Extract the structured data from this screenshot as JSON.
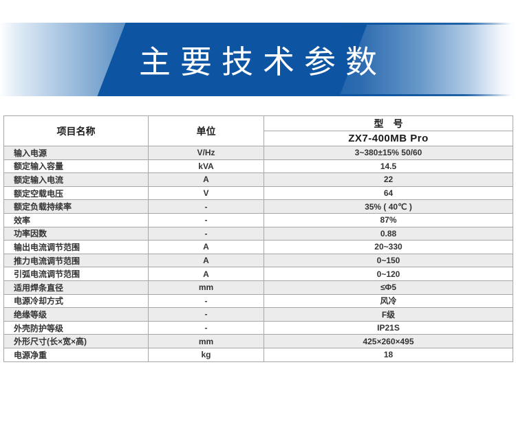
{
  "banner": {
    "title": "主要技术参数",
    "accent_color": "#0d55a2"
  },
  "table": {
    "headers": {
      "item": "项目名称",
      "unit": "单位",
      "model_label": "型　号"
    },
    "model": "ZX7-400MB Pro",
    "rows": [
      {
        "name": "输入电源",
        "unit": "V/Hz",
        "value": "3~380±15% 50/60"
      },
      {
        "name": "额定输入容量",
        "unit": "kVA",
        "value": "14.5"
      },
      {
        "name": "额定输入电流",
        "unit": "A",
        "value": "22"
      },
      {
        "name": "额定空载电压",
        "unit": "V",
        "value": "64"
      },
      {
        "name": "额定负载持续率",
        "unit": "-",
        "value": "35% ( 40℃ )"
      },
      {
        "name": "效率",
        "unit": "-",
        "value": "87%"
      },
      {
        "name": "功率因数",
        "unit": "-",
        "value": "0.88"
      },
      {
        "name": "输出电流调节范围",
        "unit": "A",
        "value": "20~330"
      },
      {
        "name": "推力电流调节范围",
        "unit": "A",
        "value": "0~150"
      },
      {
        "name": "引弧电流调节范围",
        "unit": "A",
        "value": "0~120"
      },
      {
        "name": "适用焊条直径",
        "unit": "mm",
        "value": "≤Φ5"
      },
      {
        "name": "电源冷却方式",
        "unit": "-",
        "value": "风冷"
      },
      {
        "name": "绝缘等级",
        "unit": "-",
        "value": "F级"
      },
      {
        "name": "外壳防护等级",
        "unit": "-",
        "value": "IP21S"
      },
      {
        "name": "外形尺寸(长×宽×高)",
        "unit": "mm",
        "value": "425×260×495"
      },
      {
        "name": "电源净重",
        "unit": "kg",
        "value": "18"
      }
    ],
    "stripe_color": "#ececec",
    "border_color": "#a6a6a6"
  }
}
